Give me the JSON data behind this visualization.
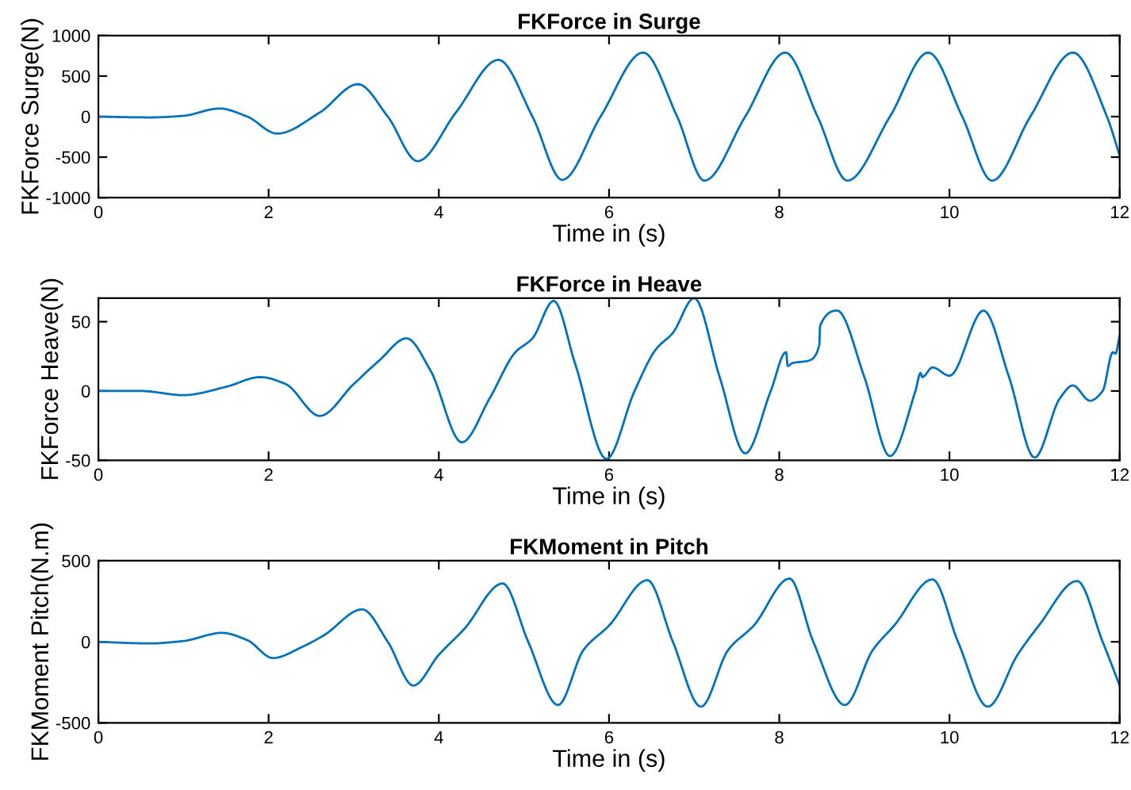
{
  "chart_data": [
    {
      "type": "line",
      "title": "FKForce in Surge",
      "xlabel": "Time in (s)",
      "ylabel": "FKForce Surge(N)",
      "xlim": [
        0,
        12
      ],
      "xticks": [
        0,
        2,
        4,
        6,
        8,
        10,
        12
      ],
      "ylim": [
        -1000,
        1000
      ],
      "yticks": [
        -1000,
        -500,
        0,
        500,
        1000
      ],
      "grid": false,
      "legend": false,
      "series": [
        {
          "color": "#0072bd",
          "x": [
            0,
            0.6,
            1.0,
            1.42,
            1.75,
            2.1,
            2.6,
            3.05,
            3.4,
            3.75,
            4.2,
            4.7,
            5.1,
            5.45,
            5.9,
            6.4,
            6.8,
            7.12,
            7.6,
            8.07,
            8.45,
            8.8,
            9.3,
            9.75,
            10.15,
            10.5,
            10.95,
            11.45,
            11.85,
            12
          ],
          "values": [
            0,
            -10,
            10,
            100,
            0,
            -210,
            50,
            400,
            0,
            -550,
            50,
            700,
            0,
            -780,
            0,
            790,
            0,
            -790,
            0,
            790,
            0,
            -790,
            0,
            790,
            0,
            -790,
            0,
            790,
            0,
            -480
          ]
        }
      ]
    },
    {
      "type": "line",
      "title": "FKForce in Heave",
      "xlabel": "Time in (s)",
      "ylabel": "FKForce Heave(N)",
      "xlim": [
        0,
        12
      ],
      "xticks": [
        0,
        2,
        4,
        6,
        8,
        10,
        12
      ],
      "ylim": [
        -50,
        67
      ],
      "yticks": [
        -50,
        0,
        50
      ],
      "grid": false,
      "legend": false,
      "series": [
        {
          "color": "#0072bd",
          "x": [
            0,
            0.5,
            1.0,
            1.5,
            1.9,
            2.2,
            2.6,
            3.0,
            3.3,
            3.62,
            3.9,
            4.27,
            4.6,
            4.9,
            5.1,
            5.35,
            5.6,
            5.97,
            6.3,
            6.55,
            6.75,
            7.0,
            7.3,
            7.6,
            7.9,
            8.08,
            8.1,
            8.15,
            8.35,
            8.47,
            8.48,
            8.68,
            9.0,
            9.3,
            9.6,
            9.66,
            9.68,
            9.8,
            10.0,
            10.4,
            10.7,
            11.0,
            11.3,
            11.45,
            11.65,
            11.8,
            11.92,
            11.95,
            12
          ],
          "values": [
            0,
            0,
            -3,
            3,
            10,
            5,
            -18,
            5,
            22,
            38,
            15,
            -37,
            -5,
            28,
            38,
            65,
            20,
            -49,
            0,
            30,
            42,
            67,
            10,
            -45,
            0,
            28,
            18,
            20,
            22,
            33,
            47,
            58,
            10,
            -47,
            0,
            13,
            10,
            17,
            11,
            58,
            10,
            -48,
            -5,
            4,
            -7,
            0,
            28,
            27,
            40
          ]
        }
      ]
    },
    {
      "type": "line",
      "title": "FKMoment in Pitch",
      "xlabel": "Time in (s)",
      "ylabel": "FKMoment Pitch(N.m)",
      "xlim": [
        0,
        12
      ],
      "xticks": [
        0,
        2,
        4,
        6,
        8,
        10,
        12
      ],
      "ylim": [
        -500,
        500
      ],
      "yticks": [
        -500,
        0,
        500
      ],
      "grid": false,
      "legend": false,
      "series": [
        {
          "color": "#0072bd",
          "x": [
            0,
            0.6,
            1.0,
            1.45,
            1.75,
            2.05,
            2.4,
            2.65,
            3.1,
            3.4,
            3.7,
            4.0,
            4.3,
            4.75,
            5.05,
            5.4,
            5.7,
            6.0,
            6.45,
            6.75,
            7.08,
            7.4,
            7.7,
            8.12,
            8.4,
            8.77,
            9.1,
            9.35,
            9.8,
            10.1,
            10.45,
            10.8,
            11.05,
            11.5,
            11.8,
            12
          ],
          "values": [
            0,
            -10,
            5,
            55,
            10,
            -100,
            -30,
            40,
            200,
            0,
            -270,
            -80,
            80,
            360,
            0,
            -390,
            -50,
            100,
            380,
            0,
            -400,
            -50,
            100,
            390,
            0,
            -390,
            -50,
            100,
            385,
            0,
            -400,
            -80,
            100,
            375,
            0,
            -270
          ]
        }
      ]
    }
  ]
}
